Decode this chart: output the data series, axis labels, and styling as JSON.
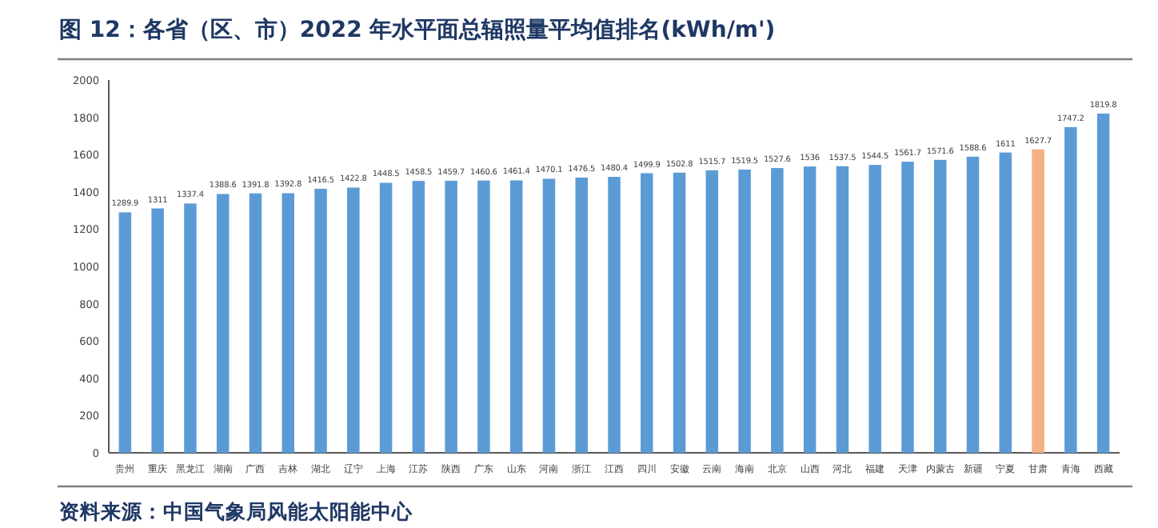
{
  "chart_data": {
    "type": "bar",
    "title": "图 12：各省（区、市）2022 年水平面总辐照量平均值排名(kWh/m')",
    "categories": [
      "贵州",
      "重庆",
      "黑龙江",
      "湖南",
      "广西",
      "吉林",
      "湖北",
      "辽宁",
      "上海",
      "江苏",
      "陕西",
      "广东",
      "山东",
      "河南",
      "浙江",
      "江西",
      "四川",
      "安徽",
      "云南",
      "海南",
      "北京",
      "山西",
      "河北",
      "福建",
      "天津",
      "内蒙古",
      "新疆",
      "宁夏",
      "甘肃",
      "青海",
      "西藏"
    ],
    "values": [
      1289.9,
      1311,
      1337.4,
      1388.6,
      1391.8,
      1392.8,
      1416.5,
      1422.8,
      1448.5,
      1458.5,
      1459.7,
      1460.6,
      1461.4,
      1470.1,
      1476.5,
      1480.4,
      1499.9,
      1502.8,
      1515.7,
      1519.5,
      1527.6,
      1536,
      1537.5,
      1544.5,
      1561.7,
      1571.6,
      1588.6,
      1611,
      1627.7,
      1747.2,
      1819.8
    ],
    "colors": [
      "#5b9bd5",
      "#5b9bd5",
      "#5b9bd5",
      "#5b9bd5",
      "#5b9bd5",
      "#5b9bd5",
      "#5b9bd5",
      "#5b9bd5",
      "#5b9bd5",
      "#5b9bd5",
      "#5b9bd5",
      "#5b9bd5",
      "#5b9bd5",
      "#5b9bd5",
      "#5b9bd5",
      "#5b9bd5",
      "#5b9bd5",
      "#5b9bd5",
      "#5b9bd5",
      "#5b9bd5",
      "#5b9bd5",
      "#5b9bd5",
      "#5b9bd5",
      "#5b9bd5",
      "#5b9bd5",
      "#5b9bd5",
      "#5b9bd5",
      "#5b9bd5",
      "#f4b183",
      "#5b9bd5",
      "#5b9bd5"
    ],
    "ylim": [
      0,
      2000
    ],
    "yticks": [
      0,
      200,
      400,
      600,
      800,
      1000,
      1200,
      1400,
      1600,
      1800,
      2000
    ],
    "data_labels": true,
    "annotations": [
      "资料来源：中国气象局风能太阳能中心"
    ]
  }
}
